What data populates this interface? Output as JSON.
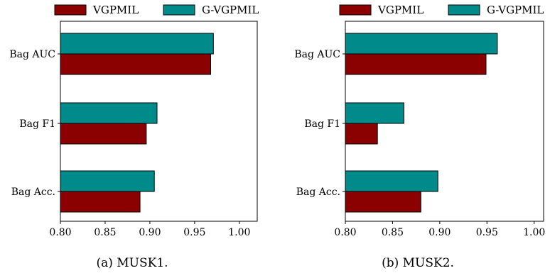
{
  "chart_data": [
    {
      "type": "bar",
      "orientation": "horizontal",
      "caption": "(a) MUSK1.",
      "categories": [
        "Bag AUC",
        "Bag F1",
        "Bag Acc."
      ],
      "series": [
        {
          "name": "VGPMIL",
          "color": "#8b0000",
          "values": [
            0.968,
            0.896,
            0.889
          ]
        },
        {
          "name": "G-VGPMIL",
          "color": "#008b8b",
          "values": [
            0.971,
            0.908,
            0.905
          ]
        }
      ],
      "xlim": [
        0.8,
        1.02
      ],
      "xticks": [
        "0.80",
        "0.85",
        "0.90",
        "0.95",
        "1.00"
      ],
      "legend": "top",
      "grid": false
    },
    {
      "type": "bar",
      "orientation": "horizontal",
      "caption": "(b) MUSK2.",
      "categories": [
        "Bag AUC",
        "Bag F1",
        "Bag Acc."
      ],
      "series": [
        {
          "name": "VGPMIL",
          "color": "#8b0000",
          "values": [
            0.949,
            0.834,
            0.88
          ]
        },
        {
          "name": "G-VGPMIL",
          "color": "#008b8b",
          "values": [
            0.961,
            0.862,
            0.898
          ]
        }
      ],
      "xlim": [
        0.8,
        1.01
      ],
      "xticks": [
        "0.80",
        "0.85",
        "0.90",
        "0.95",
        "1.00"
      ],
      "legend": "top",
      "grid": false
    }
  ]
}
